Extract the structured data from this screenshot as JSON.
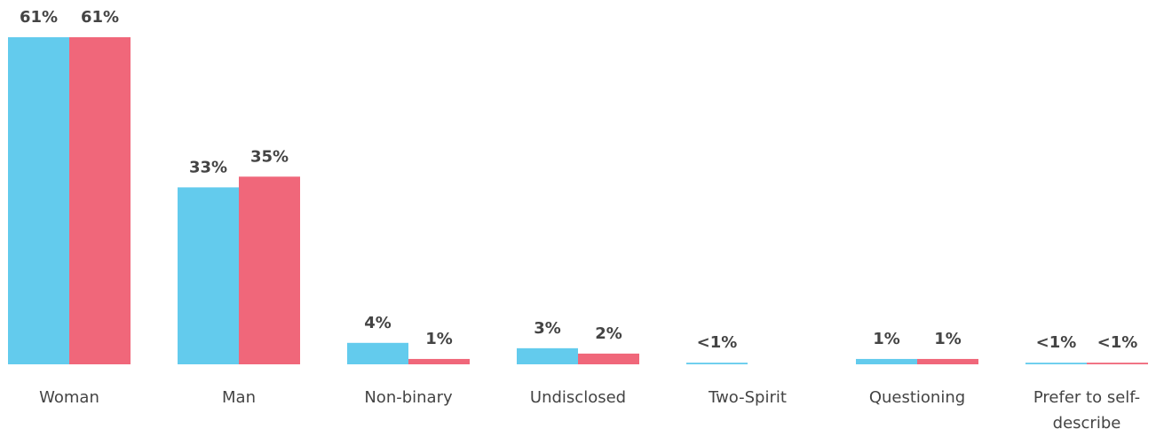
{
  "chart_data": {
    "type": "bar",
    "categories": [
      "Woman",
      "Man",
      "Non-binary",
      "Undisclosed",
      "Two-Spirit",
      "Questioning",
      "Prefer to self-describe"
    ],
    "series": [
      {
        "color": "#63cbed",
        "values": [
          61,
          33,
          4,
          3,
          0.3,
          1,
          0.3
        ],
        "value_labels": [
          "61%",
          "33%",
          "4%",
          "3%",
          "<1%",
          "1%",
          "<1%"
        ]
      },
      {
        "color": "#f0677a",
        "values": [
          61,
          35,
          1,
          2,
          null,
          1,
          0.3
        ],
        "value_labels": [
          "61%",
          "35%",
          "1%",
          "2%",
          null,
          "1%",
          "<1%"
        ]
      }
    ],
    "ylim": [
      0,
      61
    ]
  }
}
